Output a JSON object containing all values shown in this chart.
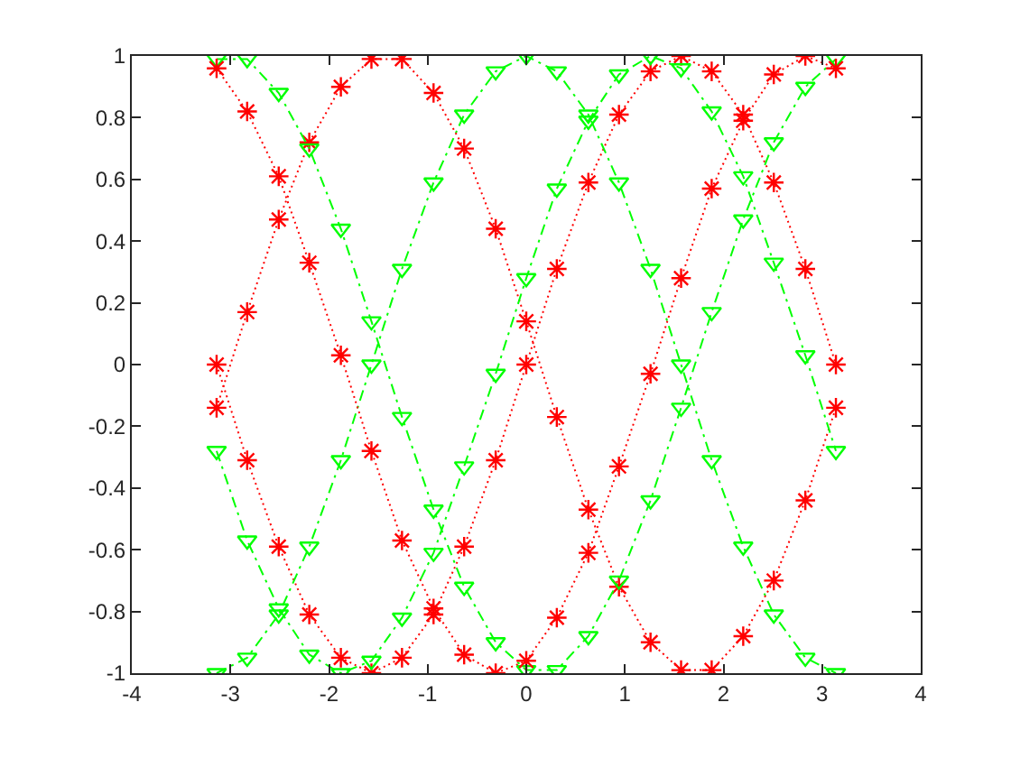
{
  "chart_data": {
    "type": "line",
    "x": [
      -3.14,
      -2.83,
      -2.51,
      -2.2,
      -1.88,
      -1.57,
      -1.26,
      -0.94,
      -0.63,
      -0.31,
      0,
      0.31,
      0.63,
      0.94,
      1.26,
      1.57,
      1.88,
      2.2,
      2.51,
      2.83,
      3.14
    ],
    "xlim": [
      -4,
      4
    ],
    "xticks": [
      -4,
      -3,
      -2,
      -1,
      0,
      1,
      2,
      3,
      4
    ],
    "ylim": [
      -1,
      1
    ],
    "yticks": [
      -1,
      -0.8,
      -0.6,
      -0.4,
      -0.2,
      0,
      0.2,
      0.4,
      0.6,
      0.8,
      1
    ],
    "grid": false,
    "series": [
      {
        "color": "#ff0000",
        "marker": "cross",
        "line_style": "dotted",
        "values": [
          0,
          -0.31,
          -0.59,
          -0.81,
          -0.95,
          -1,
          -0.95,
          -0.81,
          -0.59,
          -0.31,
          0,
          0.31,
          0.59,
          0.81,
          0.95,
          1,
          0.95,
          0.81,
          0.59,
          0.31,
          0
        ]
      },
      {
        "color": "#00ff00",
        "marker": "triangle",
        "line_style": "dashdot",
        "values": [
          -1,
          -0.95,
          -0.81,
          -0.59,
          -0.31,
          0,
          0.31,
          0.59,
          0.81,
          0.95,
          1,
          0.95,
          0.81,
          0.59,
          0.31,
          0,
          -0.31,
          -0.59,
          -0.81,
          -0.95,
          -1
        ]
      },
      {
        "color": "#ff0000",
        "marker": "cross",
        "line_style": "dotted",
        "values": [
          -0.14,
          0.17,
          0.47,
          0.72,
          0.9,
          0.99,
          0.99,
          0.88,
          0.7,
          0.44,
          0.14,
          -0.17,
          -0.47,
          -0.72,
          -0.9,
          -0.99,
          -0.99,
          -0.88,
          -0.7,
          -0.44,
          -0.14
        ]
      },
      {
        "color": "#00ff00",
        "marker": "triangle",
        "line_style": "dashdot",
        "values": [
          0.99,
          0.99,
          0.88,
          0.7,
          0.44,
          0.14,
          -0.17,
          -0.47,
          -0.72,
          -0.9,
          -0.99,
          -0.99,
          -0.88,
          -0.7,
          -0.44,
          -0.14,
          0.17,
          0.47,
          0.72,
          0.9,
          0.99
        ]
      },
      {
        "color": "#ff0000",
        "marker": "cross",
        "line_style": "dotted",
        "values": [
          0.96,
          0.82,
          0.61,
          0.33,
          0.03,
          -0.28,
          -0.57,
          -0.79,
          -0.94,
          -1,
          -0.96,
          -0.82,
          -0.61,
          -0.33,
          -0.03,
          0.28,
          0.57,
          0.79,
          0.94,
          1,
          0.96
        ]
      },
      {
        "color": "#00ff00",
        "marker": "triangle",
        "line_style": "dashdot",
        "values": [
          -0.28,
          -0.57,
          -0.79,
          -0.94,
          -1,
          -0.96,
          -0.82,
          -0.61,
          -0.33,
          -0.03,
          0.28,
          0.57,
          0.79,
          0.94,
          1,
          0.96,
          0.82,
          0.61,
          0.33,
          0.03,
          -0.28
        ]
      }
    ]
  }
}
